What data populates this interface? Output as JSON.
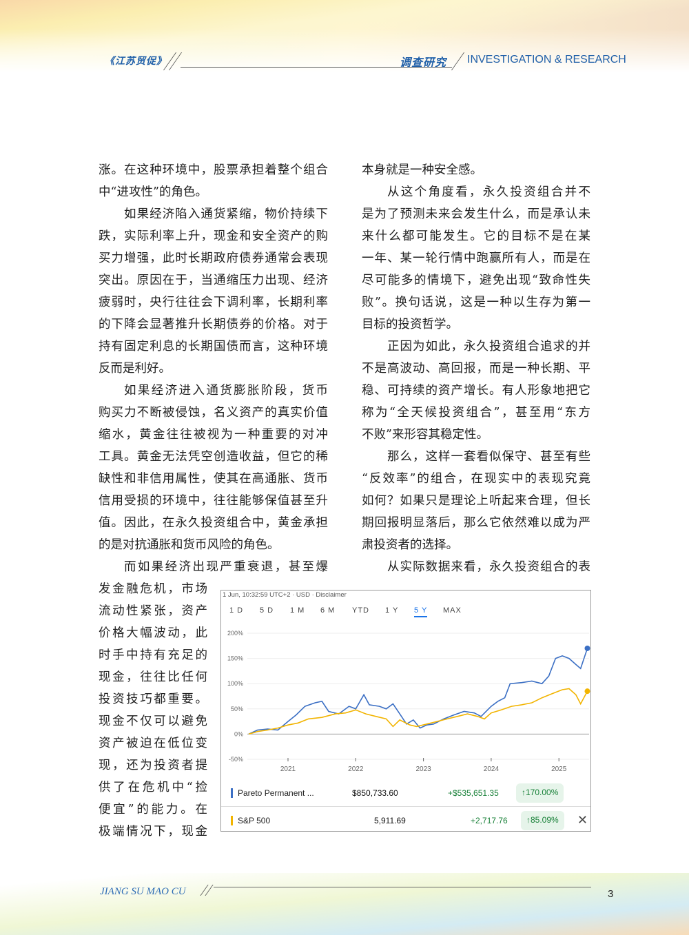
{
  "header": {
    "journal_logo": "《江苏贸促》",
    "section_logo": "调查研究",
    "section_en": "INVESTIGATION & RESEARCH"
  },
  "columns": {
    "left": [
      {
        "t": "涨。在这种环境中，股票承担着整个组合",
        "i": false
      },
      {
        "t": "中“进攻性”的角色。",
        "i": false,
        "last": true
      },
      {
        "t": "如果经济陷入通货紧缩，物价持续下",
        "i": true
      },
      {
        "t": "跌，实际利率上升，现金和安全资产的购",
        "i": false
      },
      {
        "t": "买力增强，此时长期政府债券通常会表现",
        "i": false
      },
      {
        "t": "突出。原因在于，当通缩压力出现、经济",
        "i": false
      },
      {
        "t": "疲弱时，央行往往会下调利率，长期利率",
        "i": false
      },
      {
        "t": "的下降会显著推升长期债券的价格。对于",
        "i": false
      },
      {
        "t": "持有固定利息的长期国债而言，这种环境",
        "i": false
      },
      {
        "t": "反而是利好。",
        "i": false,
        "last": true
      },
      {
        "t": "如果经济进入通货膨胀阶段，货币",
        "i": true
      },
      {
        "t": "购买力不断被侵蚀，名义资产的真实价值",
        "i": false
      },
      {
        "t": "缩水，黄金往往被视为一种重要的对冲",
        "i": false
      },
      {
        "t": "工具。黄金无法凭空创造收益，但它的稀",
        "i": false
      },
      {
        "t": "缺性和非信用属性，使其在高通胀、货币",
        "i": false
      },
      {
        "t": "信用受损的环境中，往往能够保值甚至升",
        "i": false
      },
      {
        "t": "值。因此，在永久投资组合中，黄金承担",
        "i": false
      },
      {
        "t": "的是对抗通胀和货币风险的角色。",
        "i": false,
        "last": true
      },
      {
        "t": "而如果经济出现严重衰退，甚至爆",
        "i": true
      },
      {
        "t": "发金融危机，市场",
        "i": false,
        "n": true
      },
      {
        "t": "流动性紧张，资产",
        "i": false,
        "n": true
      },
      {
        "t": "价格大幅波动，此",
        "i": false,
        "n": true
      },
      {
        "t": "时手中持有充足的",
        "i": false,
        "n": true
      },
      {
        "t": "现金，往往比任何",
        "i": false,
        "n": true
      },
      {
        "t": "投资技巧都重要。",
        "i": false,
        "n": true
      },
      {
        "t": "现金不仅可以避免",
        "i": false,
        "n": true
      },
      {
        "t": "资产被迫在低位变",
        "i": false,
        "n": true
      },
      {
        "t": "现，还为投资者提",
        "i": false,
        "n": true
      },
      {
        "t": "供了在危机中“捡",
        "i": false,
        "n": true
      },
      {
        "t": "便宜”的能力。在",
        "i": false,
        "n": true
      },
      {
        "t": "极端情况下，现金",
        "i": false,
        "n": true
      }
    ],
    "right": [
      {
        "t": "本身就是一种安全感。",
        "i": false,
        "last": true
      },
      {
        "t": "从这个角度看，永久投资组合并不",
        "i": true
      },
      {
        "t": "是为了预测未来会发生什么，而是承认未",
        "i": false
      },
      {
        "t": "来什么都可能发生。它的目标不是在某",
        "i": false
      },
      {
        "t": "一年、某一轮行情中跑赢所有人，而是在",
        "i": false
      },
      {
        "t": "尽可能多的情境下，避免出现“致命性失",
        "i": false
      },
      {
        "t": "败”。换句话说，这是一种以生存为第一",
        "i": false
      },
      {
        "t": "目标的投资哲学。",
        "i": false,
        "last": true
      },
      {
        "t": "正因为如此，永久投资组合追求的并",
        "i": true
      },
      {
        "t": "不是高波动、高回报，而是一种长期、平",
        "i": false
      },
      {
        "t": "稳、可持续的资产增长。有人形象地把它",
        "i": false
      },
      {
        "t": "称为“全天候投资组合”，甚至用“东方",
        "i": false
      },
      {
        "t": "不败”来形容其稳定性。",
        "i": false,
        "last": true
      },
      {
        "t": "那么，这样一套看似保守、甚至有些",
        "i": true
      },
      {
        "t": "“反效率”的组合，在现实中的表现究竟",
        "i": false
      },
      {
        "t": "如何？如果只是理论上听起来合理，但长",
        "i": false
      },
      {
        "t": "期回报明显落后，那么它依然难以成为严",
        "i": false
      },
      {
        "t": "肃投资者的选择。",
        "i": false,
        "last": true
      },
      {
        "t": "从实际数据来看，永久投资组合的表",
        "i": true
      }
    ]
  },
  "chart_widget": {
    "disclaimer": "1 Jun, 10:32:59 UTC+2 · USD · Disclaimer",
    "tabs": [
      "1 D",
      "5 D",
      "1 M",
      "6 M",
      "YTD",
      "1 Y",
      "5 Y",
      "MAX"
    ],
    "active_tab": "5 Y",
    "legend": [
      {
        "name": "Pareto Permanent ...",
        "value": "$850,733.60",
        "change": "+$535,651.35",
        "percent": "170.00%",
        "color": "#3b6fc4"
      },
      {
        "name": "S&P 500",
        "value": "5,911.69",
        "change": "+2,717.76",
        "percent": "85.09%",
        "color": "#f2b400"
      }
    ],
    "close_icon": "close-icon"
  },
  "chart_data": {
    "type": "line",
    "ylim": [
      -50,
      200
    ],
    "yticks": [
      "200%",
      "150%",
      "100%",
      "50%",
      "0%",
      "-50%"
    ],
    "xticks": [
      "2021",
      "2022",
      "2023",
      "2024",
      "2025"
    ],
    "grid": true,
    "series": [
      {
        "name": "Pareto Permanent ...",
        "color": "#3b6fc4",
        "points": [
          [
            2020.42,
            0
          ],
          [
            2020.55,
            8
          ],
          [
            2020.7,
            10
          ],
          [
            2020.85,
            8
          ],
          [
            2021.0,
            25
          ],
          [
            2021.12,
            38
          ],
          [
            2021.25,
            55
          ],
          [
            2021.4,
            62
          ],
          [
            2021.5,
            65
          ],
          [
            2021.6,
            45
          ],
          [
            2021.75,
            40
          ],
          [
            2021.9,
            55
          ],
          [
            2022.0,
            50
          ],
          [
            2022.12,
            78
          ],
          [
            2022.2,
            58
          ],
          [
            2022.35,
            55
          ],
          [
            2022.45,
            50
          ],
          [
            2022.55,
            60
          ],
          [
            2022.65,
            40
          ],
          [
            2022.75,
            20
          ],
          [
            2022.85,
            28
          ],
          [
            2022.95,
            12
          ],
          [
            2023.05,
            18
          ],
          [
            2023.15,
            20
          ],
          [
            2023.3,
            30
          ],
          [
            2023.45,
            38
          ],
          [
            2023.6,
            45
          ],
          [
            2023.75,
            42
          ],
          [
            2023.85,
            35
          ],
          [
            2024.0,
            55
          ],
          [
            2024.1,
            65
          ],
          [
            2024.2,
            72
          ],
          [
            2024.28,
            100
          ],
          [
            2024.45,
            102
          ],
          [
            2024.6,
            105
          ],
          [
            2024.75,
            100
          ],
          [
            2024.85,
            115
          ],
          [
            2024.95,
            150
          ],
          [
            2025.05,
            155
          ],
          [
            2025.15,
            150
          ],
          [
            2025.25,
            138
          ],
          [
            2025.32,
            130
          ],
          [
            2025.42,
            170
          ]
        ]
      },
      {
        "name": "S&P 500",
        "color": "#f2b400",
        "points": [
          [
            2020.42,
            0
          ],
          [
            2020.55,
            5
          ],
          [
            2020.7,
            8
          ],
          [
            2020.85,
            12
          ],
          [
            2021.0,
            18
          ],
          [
            2021.15,
            22
          ],
          [
            2021.3,
            30
          ],
          [
            2021.5,
            33
          ],
          [
            2021.7,
            40
          ],
          [
            2021.85,
            42
          ],
          [
            2022.0,
            48
          ],
          [
            2022.15,
            40
          ],
          [
            2022.3,
            35
          ],
          [
            2022.45,
            30
          ],
          [
            2022.55,
            15
          ],
          [
            2022.65,
            28
          ],
          [
            2022.8,
            18
          ],
          [
            2022.9,
            15
          ],
          [
            2023.05,
            20
          ],
          [
            2023.2,
            25
          ],
          [
            2023.35,
            30
          ],
          [
            2023.5,
            35
          ],
          [
            2023.65,
            40
          ],
          [
            2023.8,
            35
          ],
          [
            2023.9,
            30
          ],
          [
            2024.0,
            42
          ],
          [
            2024.15,
            48
          ],
          [
            2024.3,
            55
          ],
          [
            2024.45,
            58
          ],
          [
            2024.6,
            62
          ],
          [
            2024.75,
            72
          ],
          [
            2024.9,
            80
          ],
          [
            2025.05,
            88
          ],
          [
            2025.15,
            90
          ],
          [
            2025.25,
            78
          ],
          [
            2025.32,
            60
          ],
          [
            2025.42,
            85
          ]
        ]
      }
    ]
  },
  "footer": {
    "journal_name": "JIANG SU MAO CU",
    "page_number": "3"
  }
}
